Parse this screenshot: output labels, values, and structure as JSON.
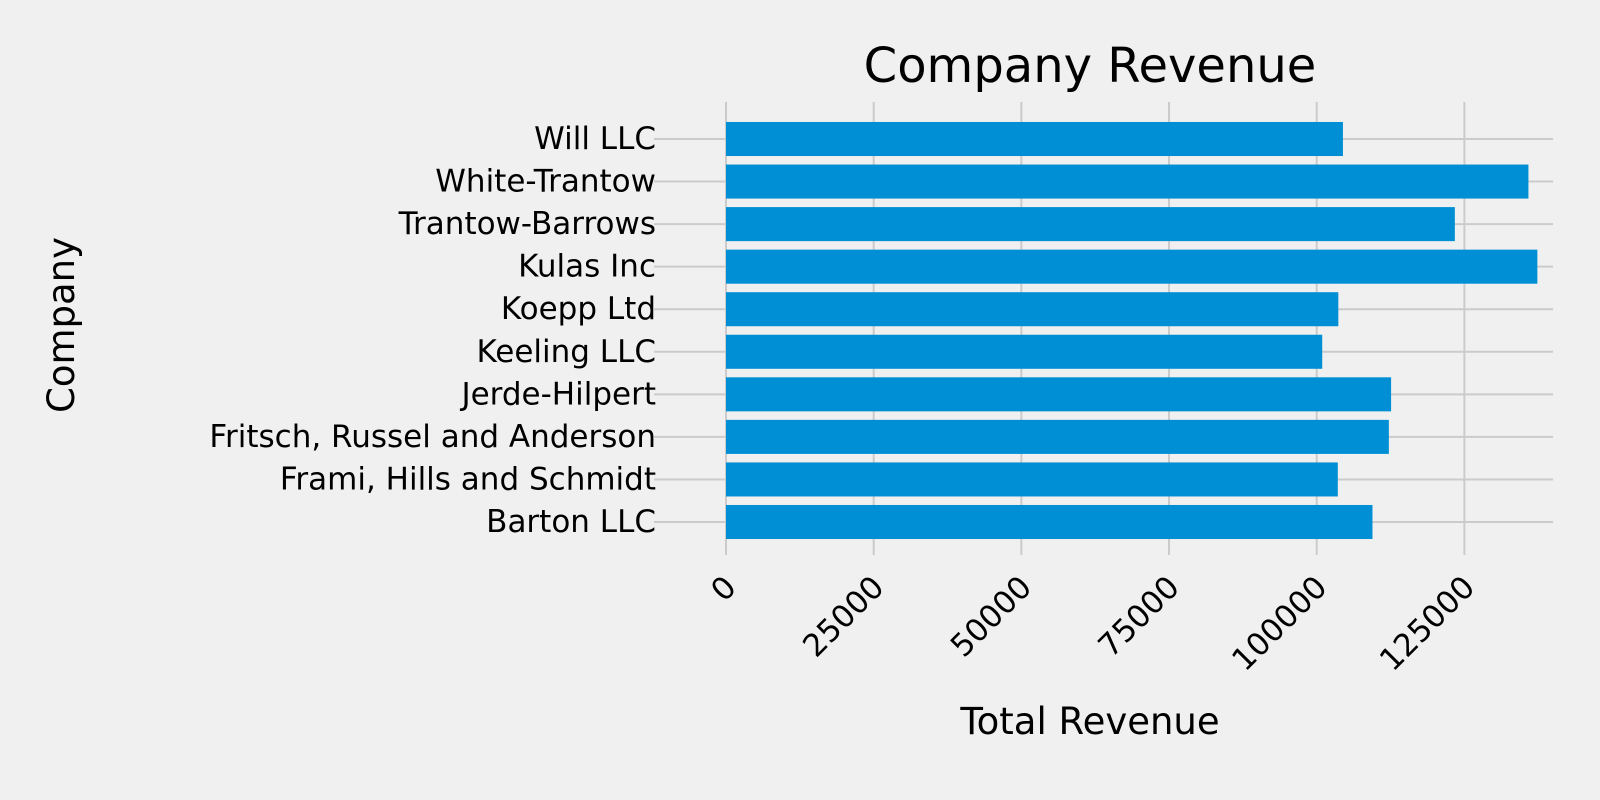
{
  "chart_data": {
    "type": "bar",
    "orientation": "horizontal",
    "title": "Company Revenue",
    "xlabel": "Total Revenue",
    "ylabel": "Company",
    "categories": [
      "Barton LLC",
      "Frami, Hills and Schmidt",
      "Fritsch, Russel and Anderson",
      "Jerde-Hilpert",
      "Keeling LLC",
      "Koepp Ltd",
      "Kulas Inc",
      "Trantow-Barrows",
      "White-Trantow",
      "Will LLC"
    ],
    "values": [
      109438,
      103569,
      112214,
      112591,
      100934,
      103660,
      137352,
      123381,
      135841,
      104437
    ],
    "xlim": [
      0,
      140000
    ],
    "xticks": [
      "0",
      "25000",
      "50000",
      "75000",
      "100000",
      "125000"
    ],
    "xtick_values": [
      0,
      25000,
      50000,
      75000,
      100000,
      125000
    ],
    "xtick_rotation": 45,
    "grid": true,
    "colors": {
      "bar": "#008fd5",
      "background": "#f0f0f0",
      "grid": "#cbcbcb"
    }
  }
}
